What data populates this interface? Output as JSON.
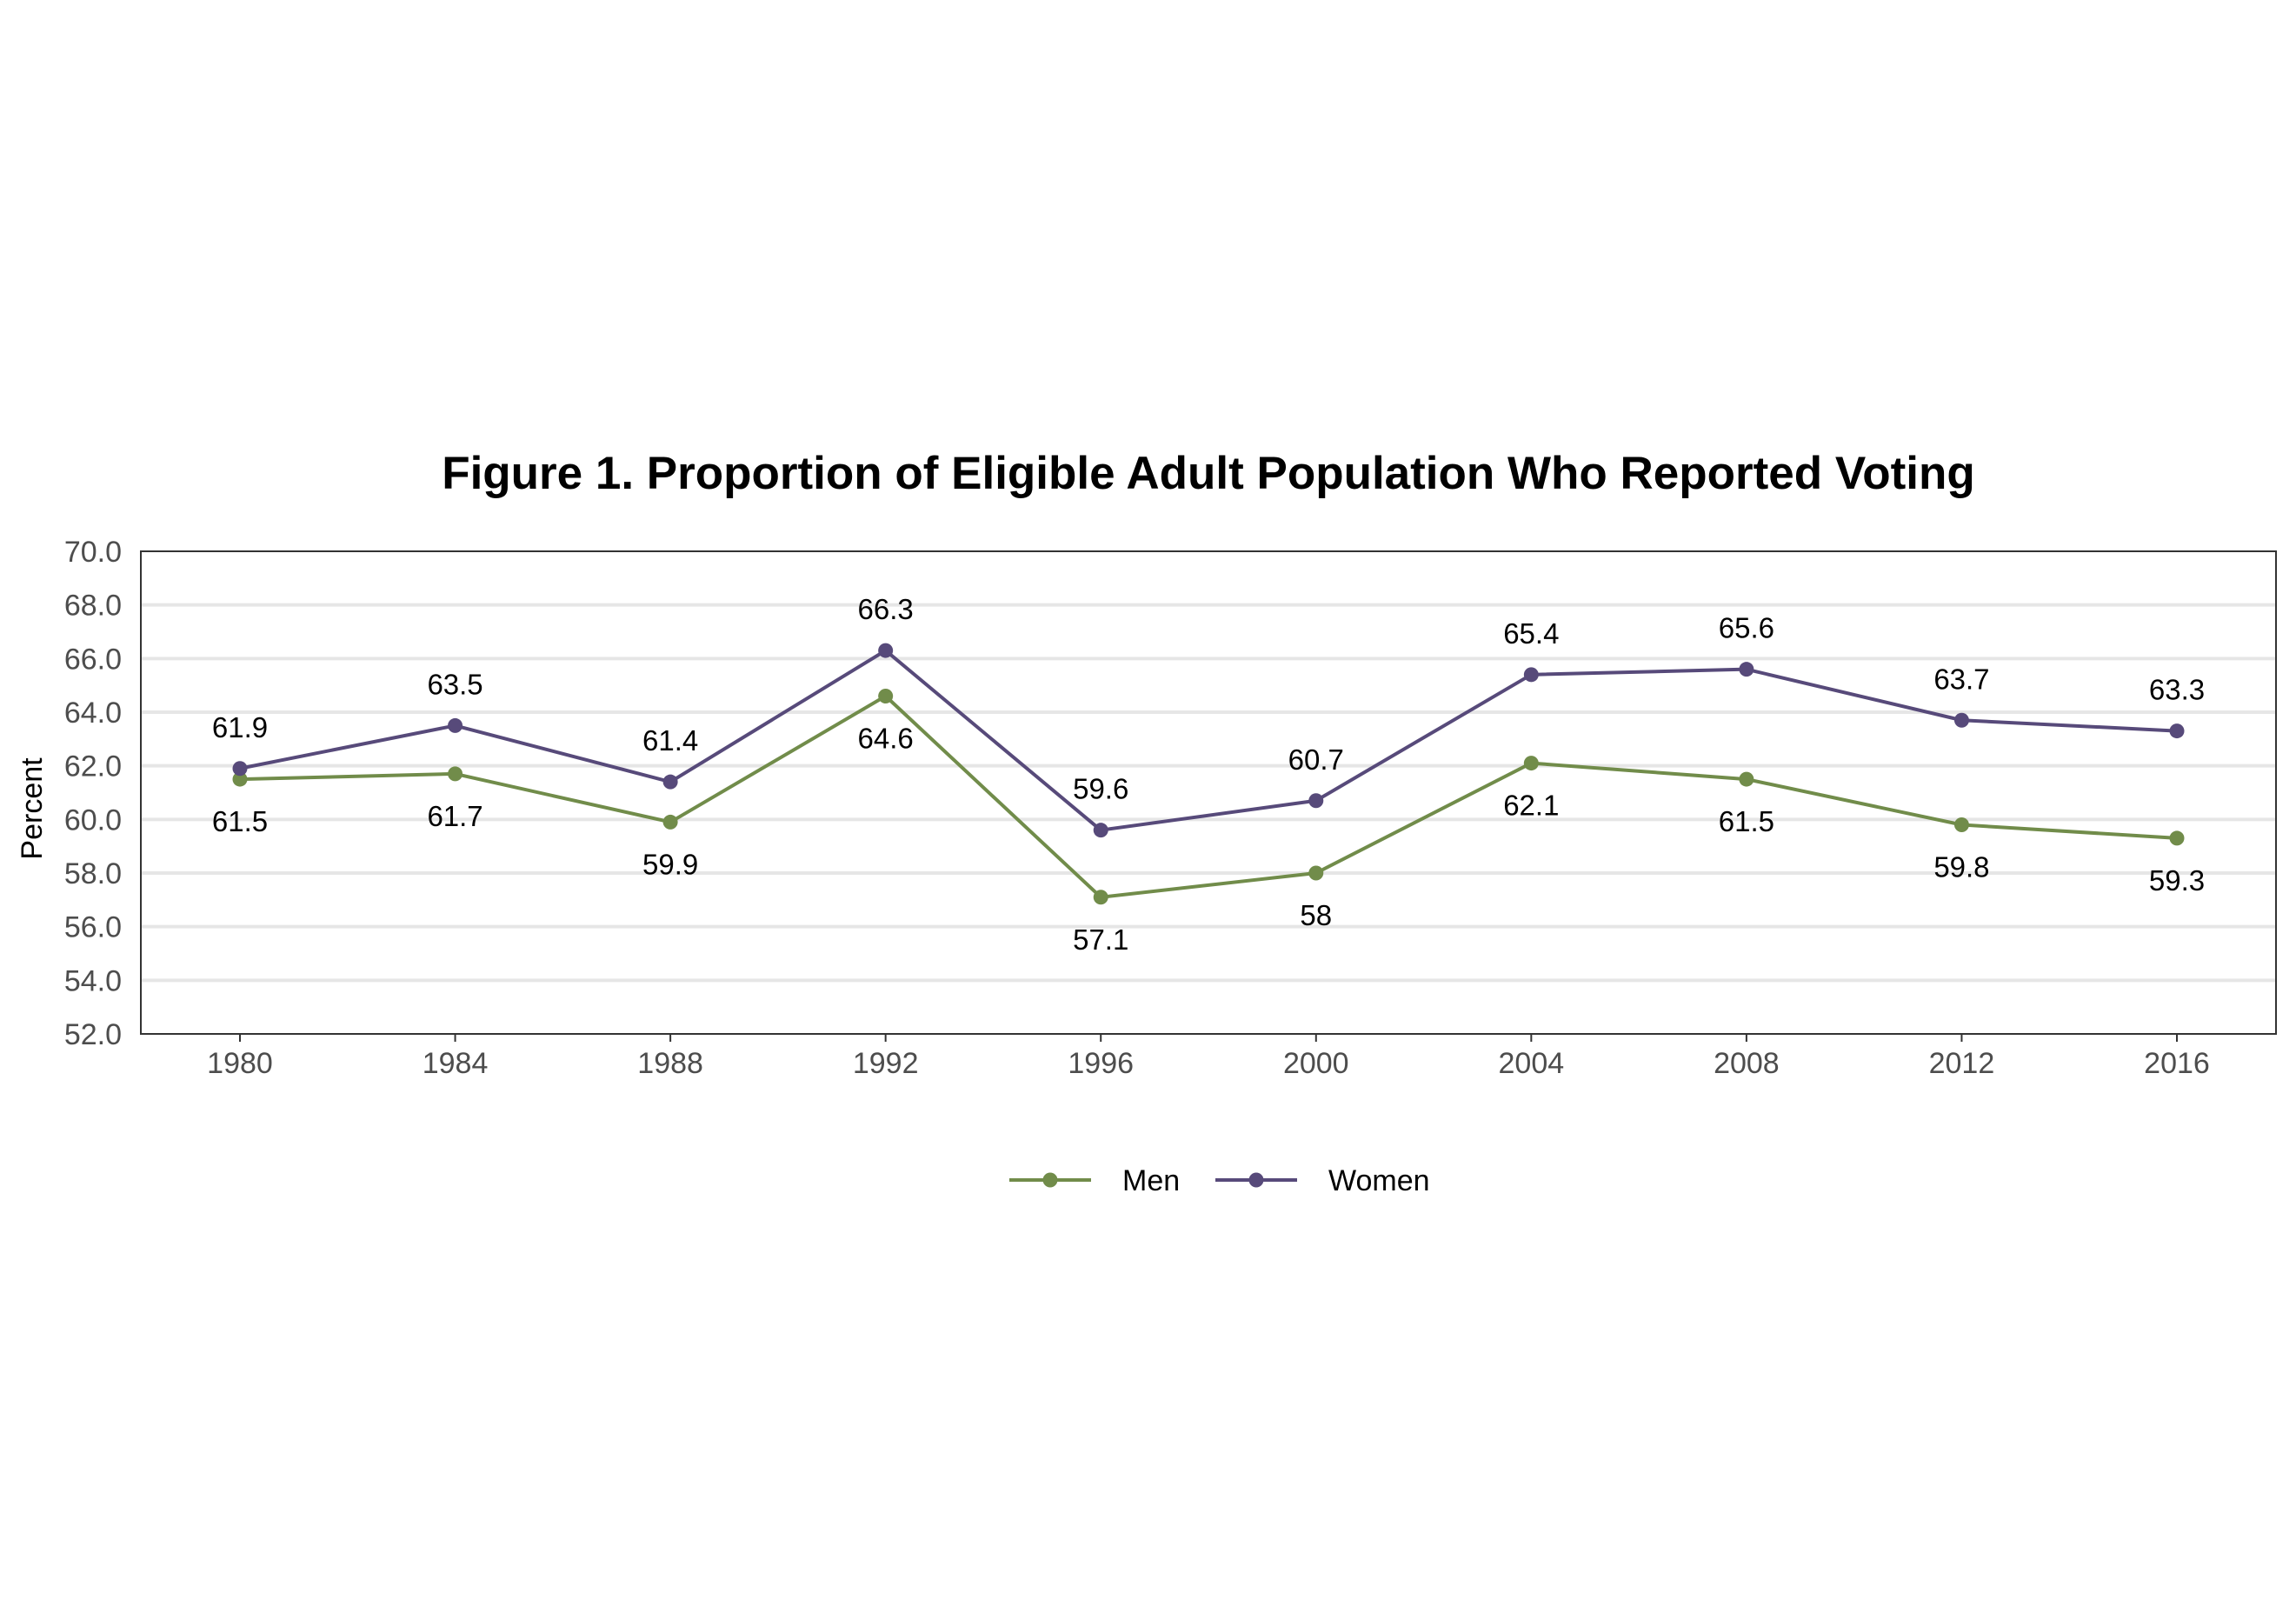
{
  "chart_data": {
    "type": "line",
    "title": "Figure 1. Proportion of Eligible Adult Population Who Reported Voting",
    "xlabel": "",
    "ylabel": "Percent",
    "x": [
      "1980",
      "1984",
      "1988",
      "1992",
      "1996",
      "2000",
      "2004",
      "2008",
      "2012",
      "2016"
    ],
    "ylim": [
      52,
      70
    ],
    "yticks": [
      "52.0",
      "54.0",
      "56.0",
      "58.0",
      "60.0",
      "62.0",
      "64.0",
      "66.0",
      "68.0",
      "70.0"
    ],
    "grid": "horizontal",
    "legend_position": "bottom",
    "series": [
      {
        "name": "Men",
        "color": "#718c4a",
        "values": [
          61.5,
          61.7,
          59.9,
          64.6,
          57.1,
          58.0,
          62.1,
          61.5,
          59.8,
          59.3
        ],
        "labels": [
          "61.5",
          "61.7",
          "59.9",
          "64.6",
          "57.1",
          "58",
          "62.1",
          "61.5",
          "59.8",
          "59.3"
        ]
      },
      {
        "name": "Women",
        "color": "#574a7a",
        "values": [
          61.9,
          63.5,
          61.4,
          66.3,
          59.6,
          60.7,
          65.4,
          65.6,
          63.7,
          63.3
        ],
        "labels": [
          "61.9",
          "63.5",
          "61.4",
          "66.3",
          "59.6",
          "60.7",
          "65.4",
          "65.6",
          "63.7",
          "63.3"
        ]
      }
    ]
  }
}
